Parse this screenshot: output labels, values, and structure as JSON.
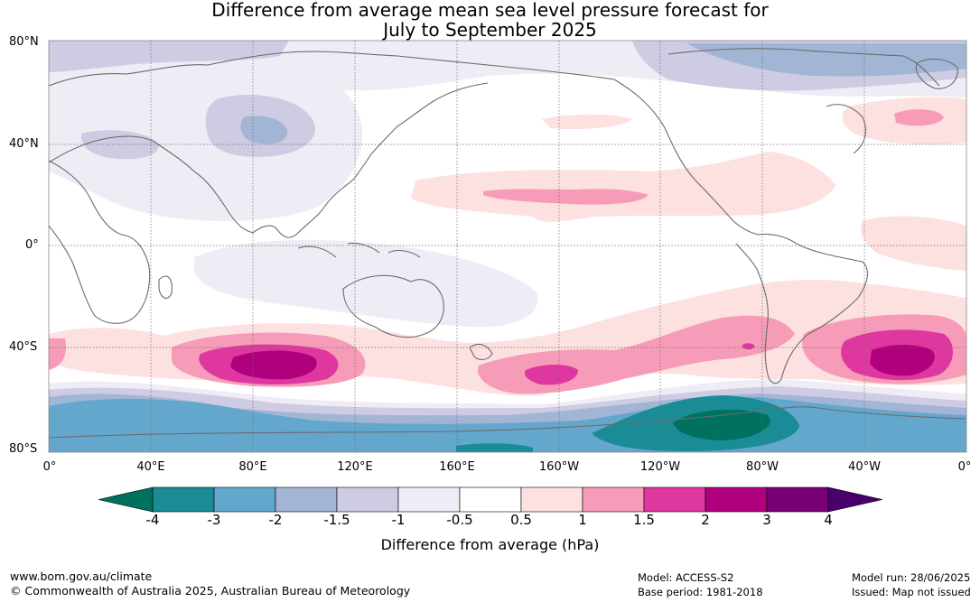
{
  "title_line1": "Difference from average mean sea level pressure forecast for",
  "title_line2": "July to September 2025",
  "lat_labels": [
    "80°N",
    "40°N",
    "0°",
    "40°S",
    "80°S"
  ],
  "lon_labels": [
    "0°",
    "40°E",
    "80°E",
    "120°E",
    "160°E",
    "160°W",
    "120°W",
    "80°W",
    "40°W",
    "0°"
  ],
  "colorbar": {
    "label": "Difference from average (hPa)",
    "ticks": [
      "-4",
      "-3",
      "-2",
      "-1.5",
      "-1",
      "-0.5",
      "0.5",
      "1",
      "1.5",
      "2",
      "3",
      "4"
    ],
    "colors": [
      "#1a8c96",
      "#64a7cd",
      "#a3b5d4",
      "#cdcce3",
      "#f0ecf5",
      "#ffffff",
      "#fde0e0",
      "#f79cb8",
      "#de38a0",
      "#b0007d",
      "#7a0075"
    ],
    "under_color": "#00705f",
    "over_color": "#4a006a"
  },
  "footer": {
    "left_line1": "www.bom.gov.au/climate",
    "left_line2": "© Commonwealth of Australia 2025, Australian Bureau of Meteorology",
    "mid_line1": "Model: ACCESS-S2",
    "mid_line2": "Base period: 1981-2018",
    "right_line1": "Model run: 28/06/2025",
    "right_line2": "Issued: Map not issued"
  }
}
